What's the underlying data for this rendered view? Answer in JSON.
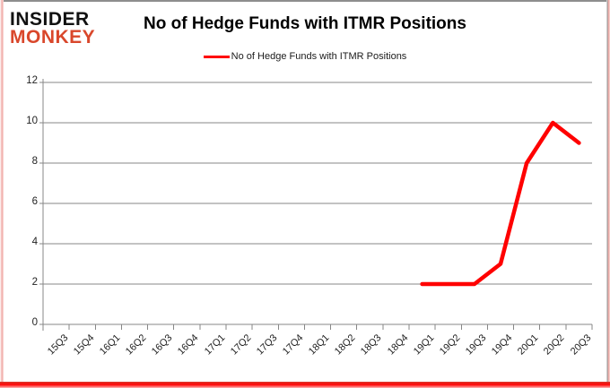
{
  "logo": {
    "line1": "INSIDER",
    "line2": "MONKEY"
  },
  "title": "No of Hedge Funds with ITMR Positions",
  "legend": {
    "label": "No of Hedge Funds with ITMR Positions"
  },
  "colors": {
    "series_line": "#ff0000",
    "gridline": "#878787",
    "axis_text": "#1f1f1f",
    "logo_accent": "#d9472b",
    "border_glow": "#ff0000"
  },
  "chart_data": {
    "type": "line",
    "title": "No of Hedge Funds with ITMR Positions",
    "categories": [
      "15Q3",
      "15Q4",
      "16Q1",
      "16Q2",
      "16Q3",
      "16Q4",
      "17Q1",
      "17Q2",
      "17Q3",
      "17Q4",
      "18Q1",
      "18Q2",
      "18Q3",
      "18Q4",
      "19Q1",
      "19Q2",
      "19Q3",
      "19Q4",
      "20Q1",
      "20Q2",
      "20Q3"
    ],
    "series": [
      {
        "name": "No of Hedge Funds with ITMR Positions",
        "values": [
          null,
          null,
          null,
          null,
          null,
          null,
          null,
          null,
          null,
          null,
          null,
          null,
          null,
          null,
          2,
          2,
          2,
          3,
          8,
          10,
          9
        ]
      }
    ],
    "xlabel": "",
    "ylabel": "",
    "ylim": [
      0,
      12
    ],
    "yticks": [
      0,
      2,
      4,
      6,
      8,
      10,
      12
    ],
    "grid": true,
    "legend_position": "top"
  }
}
